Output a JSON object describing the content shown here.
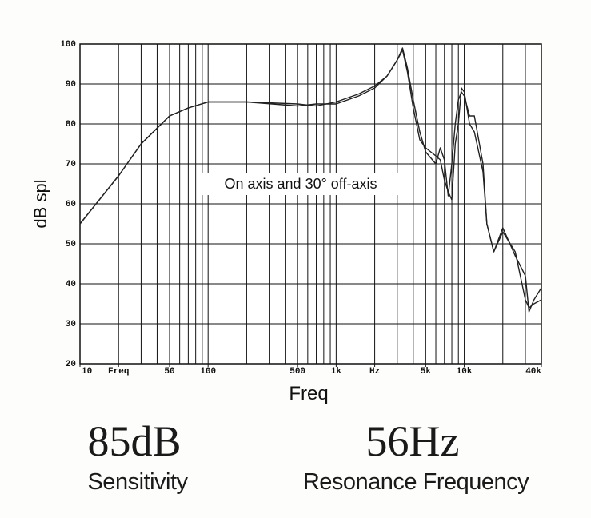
{
  "chart_data": {
    "type": "line",
    "xscale": "log",
    "grid": true,
    "annotation": "On axis and 30° off-axis",
    "xlabel": "Freq",
    "ylabel": "dB spl",
    "xlim": [
      10,
      40000
    ],
    "ylim": [
      20,
      100
    ],
    "xticks": [
      10,
      {
        "value": 20,
        "label": "Freq"
      },
      50,
      100,
      500,
      {
        "value": 1000,
        "label": "1k"
      },
      {
        "value": 2000,
        "label": "Hz"
      },
      {
        "value": 5000,
        "label": "5k"
      },
      {
        "value": 10000,
        "label": "10k"
      },
      {
        "value": 40000,
        "label": "40k"
      }
    ],
    "xgrid": [
      10,
      20,
      30,
      40,
      50,
      60,
      70,
      80,
      90,
      100,
      200,
      300,
      400,
      500,
      600,
      700,
      800,
      900,
      1000,
      2000,
      3000,
      4000,
      5000,
      6000,
      7000,
      8000,
      9000,
      10000,
      20000,
      30000,
      40000
    ],
    "yticks": [
      20,
      30,
      40,
      50,
      60,
      70,
      80,
      90,
      100
    ],
    "x": [
      10,
      20,
      30,
      50,
      70,
      100,
      200,
      500,
      700,
      1000,
      1500,
      2000,
      2500,
      3000,
      3300,
      3600,
      4000,
      4500,
      5000,
      6000,
      6500,
      7000,
      7500,
      8000,
      8500,
      9000,
      9500,
      10000,
      11000,
      12000,
      14000,
      15000,
      17000,
      20000,
      25000,
      30000,
      32000,
      35000,
      40000
    ],
    "series": [
      {
        "color": "#222222",
        "values": [
          55,
          67,
          75,
          82,
          84,
          85.5,
          85.5,
          85,
          84.5,
          85.5,
          87.5,
          89.5,
          92,
          96,
          99,
          94,
          86,
          78,
          73,
          70,
          74,
          71,
          62,
          70,
          80,
          86,
          88,
          87,
          82,
          82,
          70,
          55,
          48,
          54,
          47,
          42,
          33,
          36,
          39
        ]
      },
      {
        "color": "#222222",
        "values": [
          55,
          67,
          75,
          82,
          84,
          85.5,
          85.5,
          84.5,
          85,
          85,
          87,
          89,
          92,
          96,
          98.5,
          93,
          84,
          76,
          74,
          72,
          71,
          66,
          63,
          61,
          75,
          80,
          89,
          88,
          80,
          78,
          68,
          55,
          48,
          53,
          48,
          36,
          34,
          35,
          36
        ]
      }
    ]
  },
  "stats": [
    {
      "value": "85dB",
      "label": "Sensitivity"
    },
    {
      "value": "56Hz",
      "label": "Resonance Frequency"
    }
  ]
}
